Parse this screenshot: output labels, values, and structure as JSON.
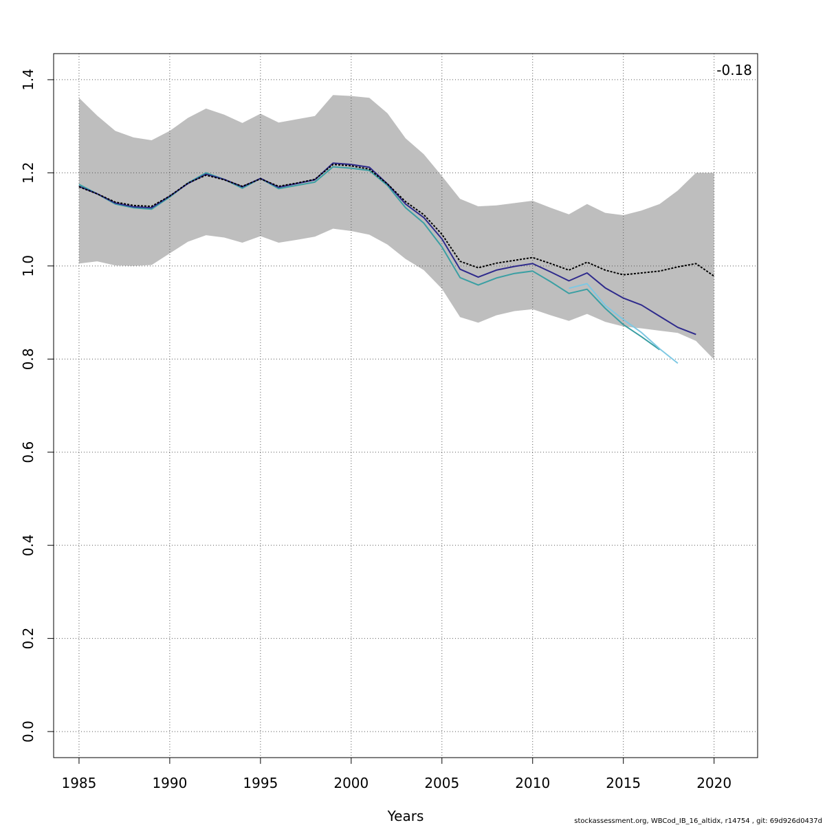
{
  "chart_data": {
    "type": "line",
    "title": "",
    "xlabel": "Years",
    "ylabel": "",
    "xlim": [
      1983.6,
      2022.4
    ],
    "ylim": [
      -0.056,
      1.456
    ],
    "xticks": [
      1985,
      1990,
      1995,
      2000,
      2005,
      2010,
      2015,
      2020
    ],
    "yticks": [
      0.0,
      0.2,
      0.4,
      0.6,
      0.8,
      1.0,
      1.2,
      1.4
    ],
    "xtick_labels": [
      "1985",
      "1990",
      "1995",
      "2000",
      "2005",
      "2010",
      "2015",
      "2020"
    ],
    "ytick_labels": [
      "0.0",
      "0.2",
      "0.4",
      "0.6",
      "0.8",
      "1.0",
      "1.2",
      "1.4"
    ],
    "grid": true,
    "annotation": "-0.18",
    "footer": "stockassessment.org, WBCod_IB_16_altidx, r14754 , git: 69d926d0437d",
    "band": {
      "color": "#bebebe",
      "x": [
        1985,
        1986,
        1987,
        1988,
        1989,
        1990,
        1991,
        1992,
        1993,
        1994,
        1995,
        1996,
        1997,
        1998,
        1999,
        2000,
        2001,
        2002,
        2003,
        2004,
        2005,
        2006,
        2007,
        2008,
        2009,
        2010,
        2011,
        2012,
        2013,
        2014,
        2015,
        2016,
        2017,
        2018,
        2019,
        2020
      ],
      "upper": [
        1.361,
        1.323,
        1.29,
        1.276,
        1.27,
        1.29,
        1.318,
        1.338,
        1.325,
        1.307,
        1.327,
        1.308,
        1.315,
        1.322,
        1.367,
        1.365,
        1.361,
        1.328,
        1.274,
        1.24,
        1.193,
        1.144,
        1.128,
        1.13,
        1.135,
        1.14,
        1.125,
        1.111,
        1.133,
        1.114,
        1.109,
        1.119,
        1.133,
        1.162,
        1.2,
        1.2
      ],
      "lower": [
        1.005,
        1.01,
        1.001,
        1.0,
        1.002,
        1.027,
        1.052,
        1.066,
        1.061,
        1.05,
        1.064,
        1.05,
        1.056,
        1.063,
        1.08,
        1.075,
        1.067,
        1.046,
        1.015,
        0.991,
        0.951,
        0.89,
        0.878,
        0.894,
        0.903,
        0.907,
        0.894,
        0.882,
        0.897,
        0.88,
        0.87,
        0.866,
        0.861,
        0.856,
        0.839,
        0.799
      ]
    },
    "series": [
      {
        "color": "#000000",
        "dashed": true,
        "x": [
          1985,
          1986,
          1987,
          1988,
          1989,
          1990,
          1991,
          1992,
          1993,
          1994,
          1995,
          1996,
          1997,
          1998,
          1999,
          2000,
          2001,
          2002,
          2003,
          2004,
          2005,
          2006,
          2007,
          2008,
          2009,
          2010,
          2011,
          2012,
          2013,
          2014,
          2015,
          2016,
          2017,
          2018,
          2019,
          2020
        ],
        "values": [
          1.17,
          1.155,
          1.137,
          1.13,
          1.128,
          1.15,
          1.178,
          1.195,
          1.185,
          1.171,
          1.187,
          1.171,
          1.178,
          1.186,
          1.218,
          1.215,
          1.208,
          1.176,
          1.138,
          1.11,
          1.068,
          1.01,
          0.996,
          1.006,
          1.012,
          1.018,
          1.005,
          0.991,
          1.008,
          0.991,
          0.981,
          0.985,
          0.989,
          0.998,
          1.005,
          0.978
        ]
      },
      {
        "color": "#2e2a8c",
        "dashed": false,
        "x": [
          1985,
          1986,
          1987,
          1988,
          1989,
          1990,
          1991,
          1992,
          1993,
          1994,
          1995,
          1996,
          1997,
          1998,
          1999,
          2000,
          2001,
          2002,
          2003,
          2004,
          2005,
          2006,
          2007,
          2008,
          2009,
          2010,
          2011,
          2012,
          2013,
          2014,
          2015,
          2016,
          2017,
          2018,
          2019
        ],
        "values": [
          1.171,
          1.155,
          1.135,
          1.127,
          1.125,
          1.15,
          1.177,
          1.197,
          1.186,
          1.17,
          1.188,
          1.169,
          1.177,
          1.185,
          1.221,
          1.218,
          1.212,
          1.176,
          1.133,
          1.104,
          1.058,
          0.993,
          0.976,
          0.991,
          0.999,
          1.005,
          0.987,
          0.968,
          0.985,
          0.953,
          0.931,
          0.916,
          0.892,
          0.868,
          0.853
        ]
      },
      {
        "color": "#3a9fa3",
        "dashed": false,
        "x": [
          1985,
          1986,
          1987,
          1988,
          1989,
          1990,
          1991,
          1992,
          1993,
          1994,
          1995,
          1996,
          1997,
          1998,
          1999,
          2000,
          2001,
          2002,
          2003,
          2004,
          2005,
          2006,
          2007,
          2008,
          2009,
          2010,
          2011,
          2012,
          2013,
          2014,
          2015,
          2016,
          2017
        ],
        "values": [
          1.175,
          1.155,
          1.133,
          1.125,
          1.122,
          1.148,
          1.178,
          1.2,
          1.186,
          1.167,
          1.188,
          1.166,
          1.173,
          1.18,
          1.213,
          1.21,
          1.205,
          1.173,
          1.125,
          1.092,
          1.041,
          0.975,
          0.959,
          0.974,
          0.984,
          0.989,
          0.966,
          0.941,
          0.95,
          0.909,
          0.874,
          0.848,
          0.82
        ]
      },
      {
        "color": "#7ec8e3",
        "dashed": false,
        "x": [
          2012,
          2013,
          2014,
          2015,
          2016,
          2017,
          2018
        ],
        "values": [
          0.952,
          0.962,
          0.915,
          0.885,
          0.857,
          0.822,
          0.791
        ]
      }
    ]
  }
}
